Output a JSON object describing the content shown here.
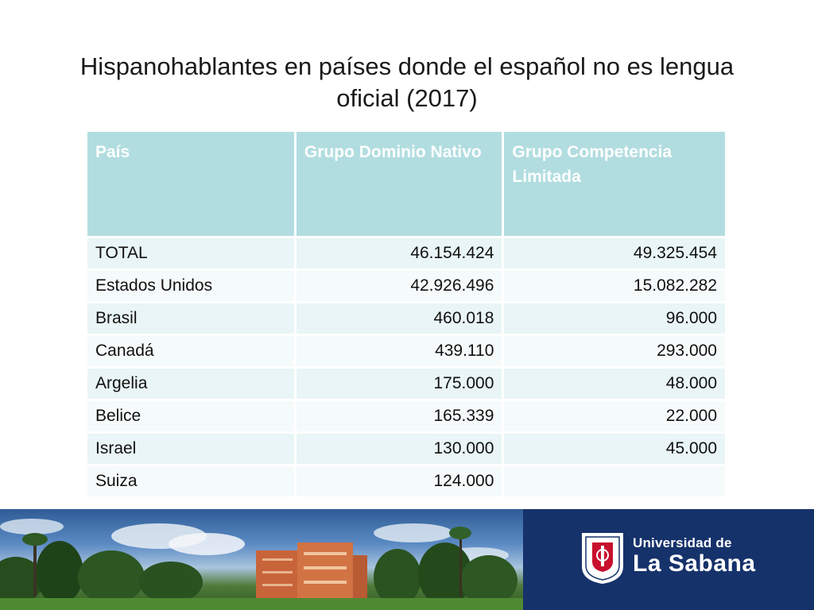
{
  "slide": {
    "title": "Hispanohablantes en países donde el español no es lengua oficial (2017)"
  },
  "table": {
    "headers": [
      "País",
      "Grupo Dominio Nativo",
      "Grupo Competencia Limitada"
    ],
    "rows": [
      [
        "TOTAL",
        "46.154.424",
        "49.325.454"
      ],
      [
        "Estados Unidos",
        "42.926.496",
        "15.082.282"
      ],
      [
        "Brasil",
        "460.018",
        "96.000"
      ],
      [
        "Canadá",
        "439.110",
        "293.000"
      ],
      [
        "Argelia",
        "175.000",
        "48.000"
      ],
      [
        "Belice",
        "165.339",
        "22.000"
      ],
      [
        "Israel",
        "130.000",
        "45.000"
      ],
      [
        "Suiza",
        "124.000",
        ""
      ]
    ]
  },
  "footer": {
    "brand_line1": "Universidad de",
    "brand_line2": "La Sabana",
    "logo_text": "UNIVERSIDAD DE LA SABANA",
    "brand_color": "#16326b"
  },
  "colors": {
    "header_bg": "#b2dde0",
    "row_odd": "#e9f5f6",
    "row_even": "#f5fafb"
  }
}
